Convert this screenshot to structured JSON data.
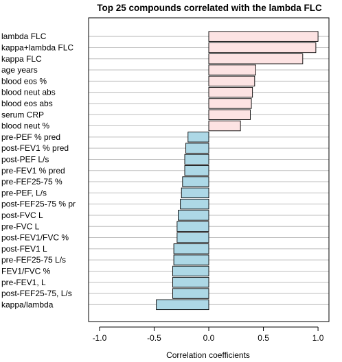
{
  "chart_data": {
    "type": "bar",
    "orientation": "horizontal",
    "title": "Top 25 compounds correlated with the lambda FLC",
    "xlabel": "Correlation coefficients",
    "ylabel": "",
    "xlim": [
      -1.1,
      1.1
    ],
    "xticks": [
      -1.0,
      -0.5,
      0.0,
      0.5,
      1.0
    ],
    "xtick_labels": [
      "-1.0",
      "-0.5",
      "0.0",
      "0.5",
      "1.0"
    ],
    "grid": "horizontal lines at each category",
    "colors": {
      "positive": "#fde3e3",
      "negative": "#add8e6",
      "grid": "#bdbdbd"
    },
    "categories": [
      "lambda FLC",
      "kappa+lambda FLC",
      "kappa FLC",
      "age years",
      "blood eos %",
      "blood neut abs",
      "blood eos abs",
      "serum CRP",
      "blood neut %",
      "pre-PEF % pred",
      "post-FEV1 % pred",
      "post-PEF L/s",
      "pre-FEV1 % pred",
      "pre-FEF25-75 %",
      "pre-PEF, L/s",
      "post-FEF25-75 % pr",
      "post-FVC L",
      "pre-FVC L",
      "post-FEV1/FVC %",
      "post-FEV1 L",
      "pre-FEF25-75 L/s",
      "FEV1/FVC %",
      "pre-FEV1, L",
      "post-FEF25-75, L/s",
      "kappa/lambda"
    ],
    "values": [
      1.0,
      0.98,
      0.86,
      0.43,
      0.42,
      0.4,
      0.39,
      0.38,
      0.29,
      -0.19,
      -0.21,
      -0.22,
      -0.22,
      -0.24,
      -0.25,
      -0.26,
      -0.28,
      -0.29,
      -0.29,
      -0.32,
      -0.32,
      -0.33,
      -0.33,
      -0.33,
      -0.48
    ]
  }
}
